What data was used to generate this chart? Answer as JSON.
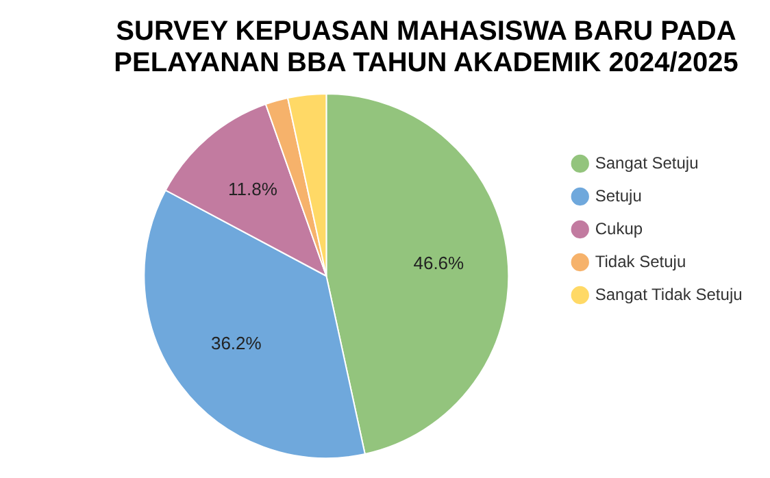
{
  "chart_data": {
    "type": "pie",
    "title": "SURVEY KEPUASAN MAHASISWA BARU PADA PELAYANAN BBA TAHUN AKADEMIK 2024/2025",
    "categories": [
      "Sangat Setuju",
      "Setuju",
      "Cukup",
      "Tidak Setuju",
      "Sangat Tidak Setuju"
    ],
    "values": [
      46.6,
      36.2,
      11.8,
      2.0,
      3.4
    ],
    "colors": [
      "#93c47d",
      "#6fa8dc",
      "#c27ba0",
      "#f6b26b",
      "#ffd966"
    ],
    "value_labels": [
      "46.6%",
      "36.2%",
      "11.8%",
      null,
      null
    ],
    "legend": "right"
  }
}
